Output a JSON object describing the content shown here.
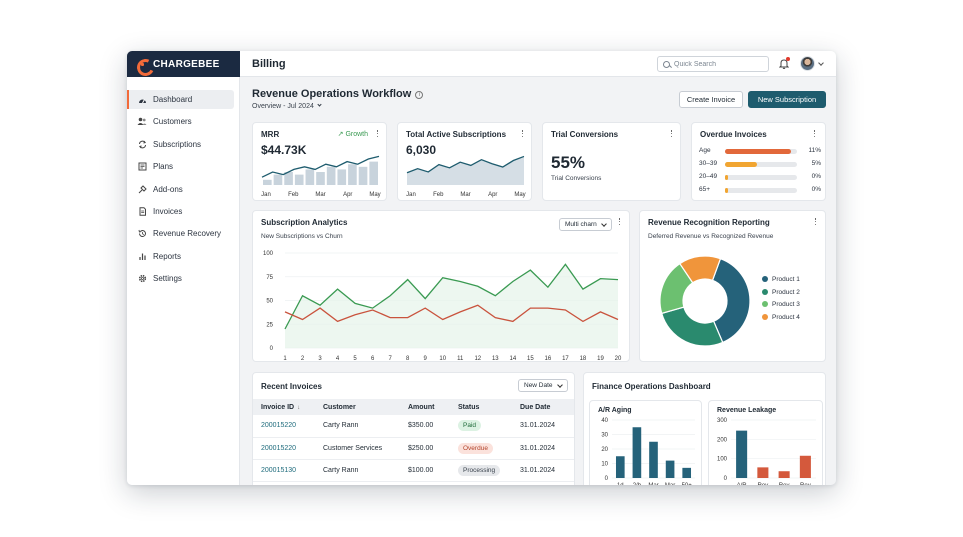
{
  "brand": {
    "name": "CHARGEBEE"
  },
  "header": {
    "title": "Billing",
    "search_placeholder": "Quick Search"
  },
  "sidebar": {
    "items": [
      {
        "label": "Dashboard",
        "icon": "dashboard-icon",
        "active": true
      },
      {
        "label": "Customers",
        "icon": "customers-icon"
      },
      {
        "label": "Subscriptions",
        "icon": "subscriptions-icon"
      },
      {
        "label": "Plans",
        "icon": "plans-icon"
      },
      {
        "label": "Add-ons",
        "icon": "addons-icon"
      },
      {
        "label": "Invoices",
        "icon": "invoices-icon"
      },
      {
        "label": "Revenue Recovery",
        "icon": "revenue-recovery-icon"
      },
      {
        "label": "Reports",
        "icon": "reports-icon"
      },
      {
        "label": "Settings",
        "icon": "settings-icon"
      }
    ]
  },
  "page": {
    "title": "Revenue Operations Workflow",
    "period": "Overview - Jul 2024",
    "create_invoice_label": "Create Invoice",
    "new_subscription_label": "New Subscription"
  },
  "kpis": {
    "mrr": {
      "title": "MRR",
      "growth_label": "Growth",
      "value": "$44.73K",
      "months": [
        "Jan",
        "Feb",
        "Mar",
        "Apr",
        "May"
      ],
      "bars": [
        2,
        4,
        5,
        4,
        6,
        5,
        7,
        6,
        8,
        7,
        9
      ],
      "line": [
        3,
        5,
        4,
        6,
        7,
        6,
        8,
        7,
        9,
        8,
        10,
        11
      ]
    },
    "active_subs": {
      "title": "Total Active Subscriptions",
      "value": "6,030",
      "months": [
        "Jan",
        "Feb",
        "Mar",
        "Apr",
        "May"
      ],
      "line": [
        3,
        4,
        3.2,
        5,
        4.2,
        5.6,
        4.8,
        6.2,
        5.2,
        4.4,
        6,
        7
      ]
    },
    "trial": {
      "title": "Trial Conversions",
      "value": "55%",
      "caption": "Trial Conversions"
    },
    "overdue": {
      "title": "Overdue Invoices",
      "rows": [
        {
          "label": "Age",
          "pct_label": "11%",
          "fraction": 0.92,
          "color": "#e2683a"
        },
        {
          "label": "30–39",
          "pct_label": "5%",
          "fraction": 0.45,
          "color": "#f1a531"
        },
        {
          "label": "20–49",
          "pct_label": "0%",
          "fraction": 0.04,
          "color": "#f1a531"
        },
        {
          "label": "65+",
          "pct_label": "0%",
          "fraction": 0.04,
          "color": "#f1a531"
        }
      ]
    }
  },
  "analytics": {
    "title": "Subscription Analytics",
    "subtitle": "New Subscriptions vs Churn",
    "dropdown": "Multi charn",
    "chart_data": {
      "type": "line",
      "x": [
        1,
        2,
        3,
        4,
        5,
        6,
        7,
        8,
        9,
        10,
        11,
        12,
        13,
        14,
        15,
        16,
        17,
        18,
        19,
        20
      ],
      "ylim": [
        0,
        100
      ],
      "yticks": [
        0,
        25,
        50,
        75,
        100
      ],
      "series": [
        {
          "values": [
            20,
            55,
            45,
            62,
            47,
            42,
            55,
            72,
            52,
            74,
            70,
            65,
            55,
            70,
            82,
            64,
            88,
            62,
            73,
            72
          ],
          "color": "#3a9a52"
        },
        {
          "values": [
            38,
            30,
            42,
            28,
            35,
            40,
            32,
            32,
            42,
            30,
            38,
            45,
            32,
            28,
            42,
            42,
            40,
            28,
            38,
            30
          ],
          "color": "#c9533d"
        }
      ]
    }
  },
  "recognition": {
    "title": "Revenue Recognition Reporting",
    "subtitle": "Deferred Revenue vs Recognized Revenue",
    "chart_data": {
      "type": "pie",
      "labels": [
        "Product 1",
        "Product 2",
        "Product 3",
        "Product 4"
      ],
      "values": [
        38,
        27,
        20,
        15
      ],
      "colors": [
        "#25627a",
        "#2a8a6e",
        "#6cc070",
        "#f0953b"
      ]
    }
  },
  "invoices": {
    "title": "Recent Invoices",
    "sort_label": "New Date",
    "columns": [
      "Invoice ID",
      "Customer",
      "Amount",
      "Status",
      "Due Date"
    ],
    "rows": [
      {
        "id": "200015220",
        "customer": "Carty Rann",
        "amount": "$350.00",
        "status": "Paid",
        "status_kind": "paid",
        "due": "31.01.2024"
      },
      {
        "id": "200015220",
        "customer": "Customer Services",
        "amount": "$250.00",
        "status": "Overdue",
        "status_kind": "overdue",
        "due": "31.01.2024"
      },
      {
        "id": "200015130",
        "customer": "Carty Rann",
        "amount": "$100.00",
        "status": "Processing",
        "status_kind": "processing",
        "due": "31.01.2024"
      }
    ]
  },
  "finance": {
    "title": "Finance Operations Dashboard",
    "aging": {
      "title": "A/R Aging",
      "chart_data": {
        "type": "bar",
        "categories": [
          "1d",
          "2/h",
          "Mar",
          "Mar",
          "50+"
        ],
        "values": [
          15,
          35,
          25,
          12,
          7
        ],
        "ylim": [
          0,
          40
        ],
        "yticks": [
          0,
          10,
          20,
          30,
          40
        ],
        "color": "#25627a"
      }
    },
    "leakage": {
      "title": "Revenue Leakage",
      "chart_data": {
        "type": "bar",
        "categories": [
          "A/R",
          "Rev",
          "Rev",
          "Rev"
        ],
        "values": [
          245,
          55,
          35,
          115
        ],
        "ylim": [
          0,
          300
        ],
        "yticks": [
          0,
          100,
          200,
          300
        ],
        "colors": [
          "#25627a",
          "#d4593c",
          "#d4593c",
          "#d4593c"
        ]
      }
    }
  }
}
